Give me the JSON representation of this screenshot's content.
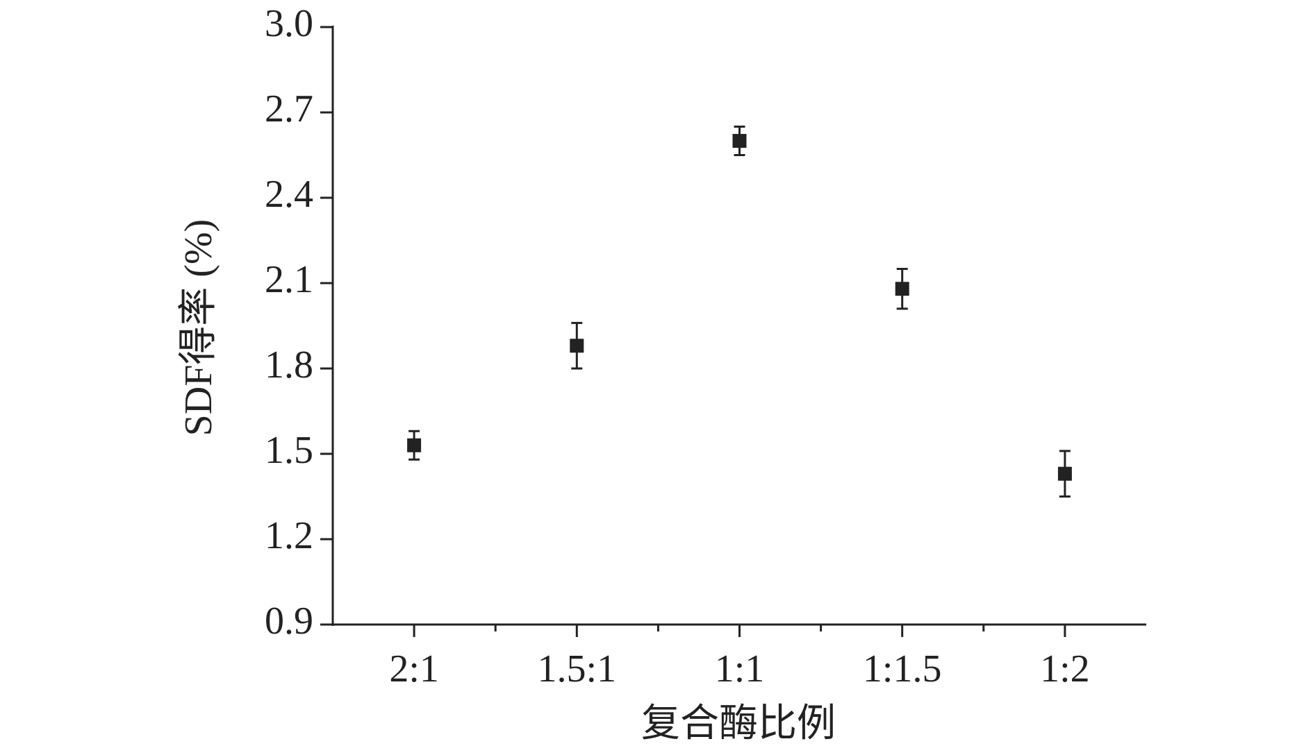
{
  "chart_data": {
    "type": "line",
    "x_label": "复合酶比例",
    "y_label": "SDF得率 (%)",
    "categories": [
      "2:1",
      "1.5:1",
      "1:1",
      "1:1.5",
      "1:2"
    ],
    "series": [
      {
        "name": "SDF",
        "color": "#222222",
        "values": [
          1.53,
          1.88,
          2.6,
          2.08,
          1.43
        ],
        "errors": [
          0.05,
          0.08,
          0.05,
          0.07,
          0.08
        ]
      }
    ],
    "ylim": [
      0.9,
      3.0
    ],
    "yticks": [
      0.9,
      1.2,
      1.5,
      1.8,
      2.1,
      2.4,
      2.7,
      {
        "value": 3.0,
        "label": "3.0"
      }
    ],
    "grid": false
  }
}
